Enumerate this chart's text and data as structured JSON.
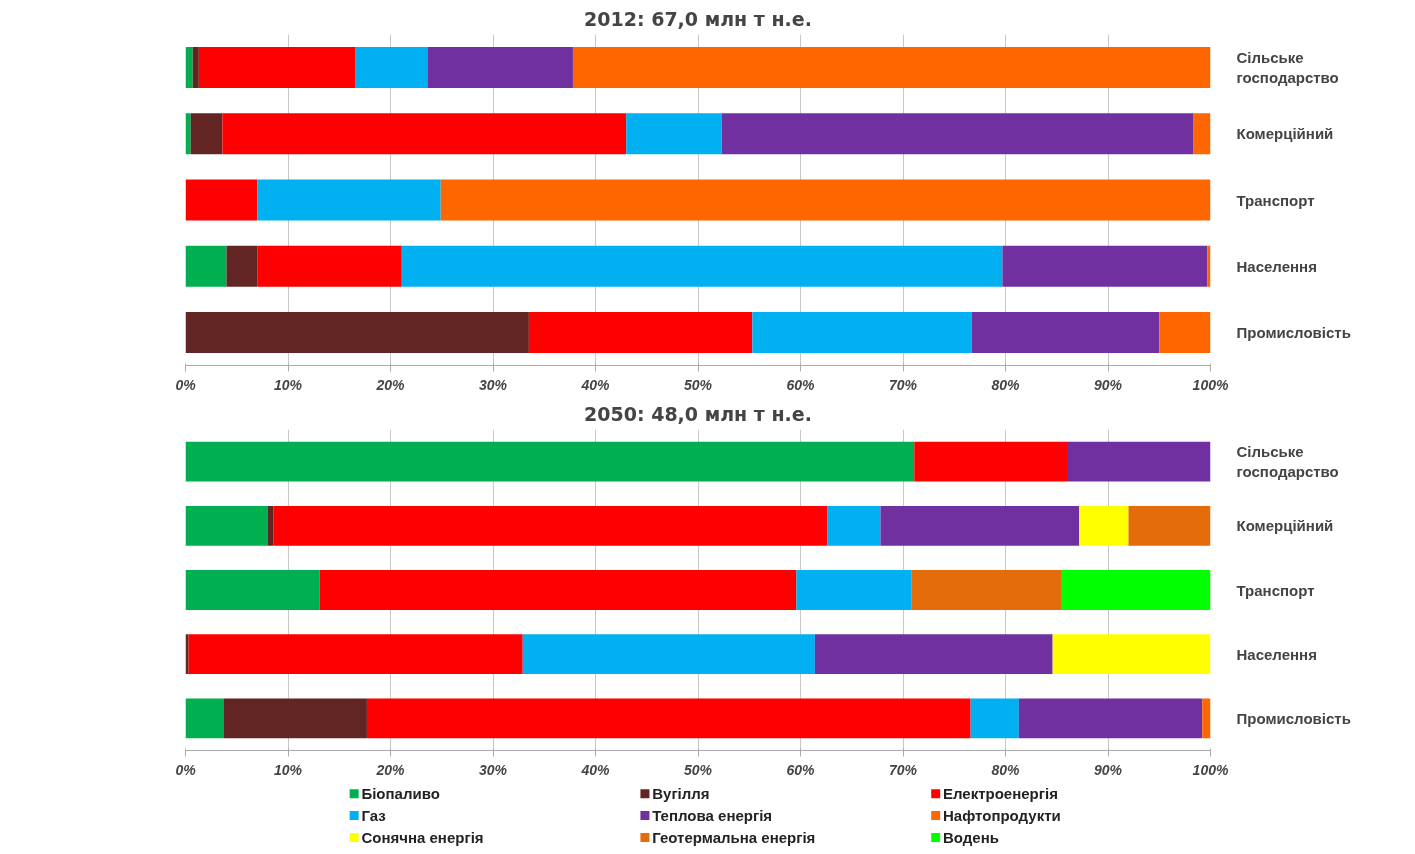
{
  "chart_data": [
    {
      "type": "bar",
      "stacked": true,
      "orientation": "horizontal",
      "title": "2012: 67,0 млн т н.е.",
      "categories": [
        "Сільське господарство",
        "Комерційний",
        "Транспорт",
        "Населення",
        "Промисловість"
      ],
      "series": [
        {
          "name": "Біопаливо",
          "color": "#00b050",
          "values": [
            0.7,
            0.5,
            0,
            4.0,
            0
          ]
        },
        {
          "name": "Вугілля",
          "color": "#632523",
          "values": [
            0.6,
            3.1,
            0,
            3.0,
            33.5
          ]
        },
        {
          "name": "Електроенергія",
          "color": "#ff0000",
          "values": [
            15.3,
            39.4,
            7.0,
            14.1,
            21.8
          ]
        },
        {
          "name": "Газ",
          "color": "#00b0f0",
          "values": [
            7.0,
            9.3,
            17.9,
            58.6,
            21.4
          ]
        },
        {
          "name": "Теплова енергія",
          "color": "#7030a0",
          "values": [
            14.2,
            46.0,
            0,
            20.0,
            18.3
          ]
        },
        {
          "name": "Нафтопродукти",
          "color": "#ff6600",
          "values": [
            62.2,
            1.7,
            75.1,
            0.3,
            5.0
          ]
        }
      ],
      "xlim": [
        0,
        100
      ],
      "xticks": [
        {
          "value": 0,
          "label": "0%"
        },
        {
          "value": 10,
          "label": "10%"
        },
        {
          "value": 20,
          "label": "20%"
        },
        {
          "value": 30,
          "label": "30%"
        },
        {
          "value": 40,
          "label": "40%"
        },
        {
          "value": 50,
          "label": "50%"
        },
        {
          "value": 60,
          "label": "60%"
        },
        {
          "value": 70,
          "label": "70%"
        },
        {
          "value": 80,
          "label": "80%"
        },
        {
          "value": 90,
          "label": "90%"
        },
        {
          "value": 100,
          "label": "100%"
        }
      ],
      "grid": "x",
      "legend": "bottom"
    },
    {
      "type": "bar",
      "stacked": true,
      "orientation": "horizontal",
      "title": "2050: 48,0 млн т н.е.",
      "categories": [
        "Сільське господарство",
        "Комерційний",
        "Транспорт",
        "Населення",
        "Промисловість"
      ],
      "series": [
        {
          "name": "Біопаливо",
          "color": "#00b050",
          "values": [
            71.1,
            8.0,
            13.1,
            0,
            3.7
          ]
        },
        {
          "name": "Вугілля",
          "color": "#632523",
          "values": [
            0,
            0.6,
            0,
            0.3,
            14.0
          ]
        },
        {
          "name": "Електроенергія",
          "color": "#ff0000",
          "values": [
            14.9,
            54.0,
            46.5,
            32.6,
            58.9
          ]
        },
        {
          "name": "Газ",
          "color": "#00b0f0",
          "values": [
            0,
            5.2,
            11.2,
            28.5,
            4.7
          ]
        },
        {
          "name": "Теплова енергія",
          "color": "#7030a0",
          "values": [
            14.0,
            19.4,
            0,
            23.2,
            17.9
          ]
        },
        {
          "name": "Нафтопродукти",
          "color": "#ff6600",
          "values": [
            0,
            0,
            0,
            0,
            0.8
          ]
        },
        {
          "name": "Сонячна енергія",
          "color": "#ffff00",
          "values": [
            0,
            4.8,
            0,
            15.4,
            0
          ]
        },
        {
          "name": "Геотермальна енергія",
          "color": "#e46c0a",
          "values": [
            0,
            8.0,
            14.7,
            0,
            0
          ]
        },
        {
          "name": "Водень",
          "color": "#00ff00",
          "values": [
            0,
            0,
            14.5,
            0,
            0
          ]
        }
      ],
      "xlim": [
        0,
        100
      ],
      "xticks": [
        {
          "value": 0,
          "label": "0%"
        },
        {
          "value": 10,
          "label": "10%"
        },
        {
          "value": 20,
          "label": "20%"
        },
        {
          "value": 30,
          "label": "30%"
        },
        {
          "value": 40,
          "label": "40%"
        },
        {
          "value": 50,
          "label": "50%"
        },
        {
          "value": 60,
          "label": "60%"
        },
        {
          "value": 70,
          "label": "70%"
        },
        {
          "value": 80,
          "label": "80%"
        },
        {
          "value": 90,
          "label": "90%"
        },
        {
          "value": 100,
          "label": "100%"
        }
      ],
      "grid": "x",
      "legend": "bottom"
    }
  ]
}
